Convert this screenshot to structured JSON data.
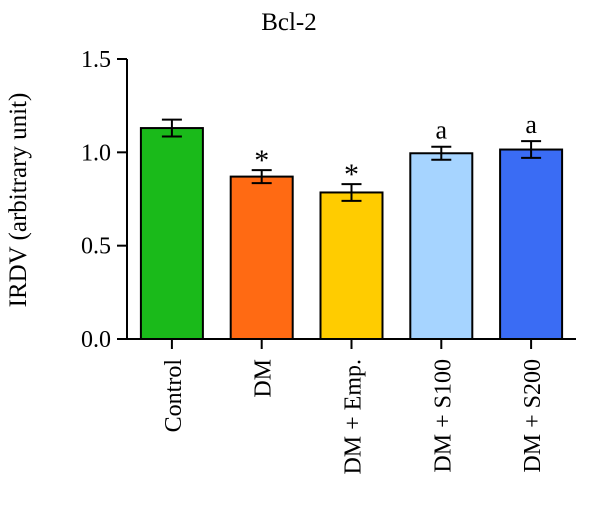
{
  "chart_data": {
    "type": "bar",
    "title": "Bcl-2",
    "ylabel": "IRDV (arbitrary unit)",
    "xlabel": "",
    "ylim": [
      0,
      1.5
    ],
    "yticks": [
      0.0,
      0.5,
      1.0,
      1.5
    ],
    "ytick_labels": [
      "0.0",
      "0.5",
      "1.0",
      "1.5"
    ],
    "grid": false,
    "categories": [
      "Control",
      "DM",
      "DM + Emp.",
      "DM + S100",
      "DM + S200"
    ],
    "values": [
      1.13,
      0.87,
      0.785,
      0.995,
      1.015
    ],
    "errors": [
      0.045,
      0.035,
      0.045,
      0.035,
      0.045
    ],
    "annotations": [
      "",
      "*",
      "*",
      "a",
      "a"
    ],
    "colors": [
      "#1aba1a",
      "#ff6a13",
      "#ffcc00",
      "#a6d4ff",
      "#3a6cf4"
    ]
  }
}
